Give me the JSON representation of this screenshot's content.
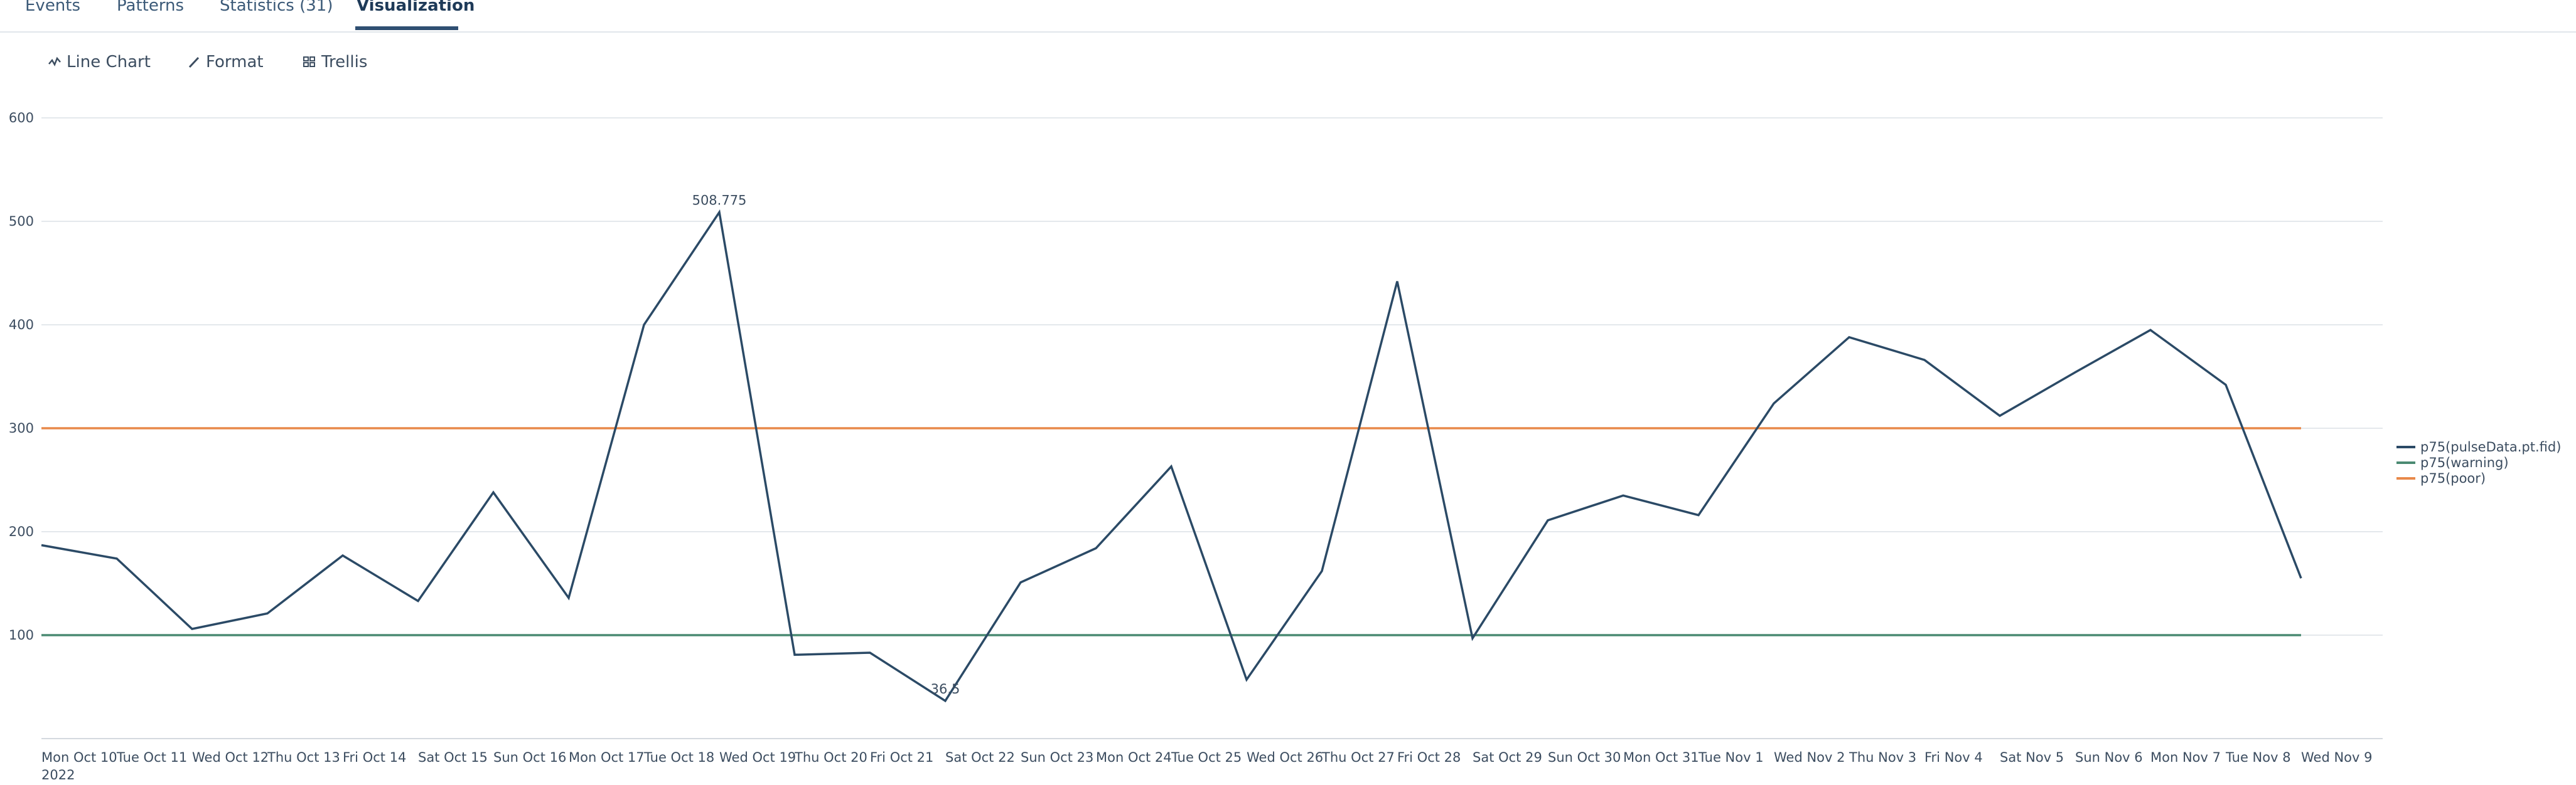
{
  "tabs": [
    {
      "label": "Events",
      "active": false
    },
    {
      "label": "Patterns",
      "active": false
    },
    {
      "label": "Statistics (31)",
      "active": false
    },
    {
      "label": "Visualization",
      "active": true
    }
  ],
  "toolbar": {
    "line_chart_label": "Line Chart",
    "format_label": "Format",
    "trellis_label": "Trellis"
  },
  "chart_data": {
    "type": "line",
    "x": [
      "Mon Oct 10",
      "Tue Oct 11",
      "Wed Oct 12",
      "Thu Oct 13",
      "Fri Oct 14",
      "Sat Oct 15",
      "Sun Oct 16",
      "Mon Oct 17",
      "Tue Oct 18",
      "Wed Oct 19",
      "Thu Oct 20",
      "Fri Oct 21",
      "Sat Oct 22",
      "Sun Oct 23",
      "Mon Oct 24",
      "Tue Oct 25",
      "Wed Oct 26",
      "Thu Oct 27",
      "Fri Oct 28",
      "Sat Oct 29",
      "Sun Oct 30",
      "Mon Oct 31",
      "Tue Nov 1",
      "Wed Nov 2",
      "Thu Nov 3",
      "Fri Nov 4",
      "Sat Nov 5",
      "Sun Nov 6",
      "Mon Nov 7",
      "Tue Nov 8",
      "Wed Nov 9"
    ],
    "x_year_label": "2022",
    "ylim": [
      0,
      600
    ],
    "yticks": [
      100,
      200,
      300,
      400,
      500,
      600
    ],
    "grid": true,
    "legend_position": "right",
    "series": [
      {
        "name": "p75(pulseData.pt.fid)",
        "color": "#2b4a66",
        "values": [
          187,
          174,
          106,
          121,
          177,
          133,
          238,
          136,
          400,
          508.775,
          81,
          83,
          36.5,
          151,
          184,
          263,
          57,
          162,
          442,
          97,
          211,
          235,
          216,
          324,
          388,
          366,
          312,
          354,
          395,
          342,
          155
        ]
      },
      {
        "name": "p75(warning)",
        "color": "#4a8a72",
        "values": [
          100,
          100,
          100,
          100,
          100,
          100,
          100,
          100,
          100,
          100,
          100,
          100,
          100,
          100,
          100,
          100,
          100,
          100,
          100,
          100,
          100,
          100,
          100,
          100,
          100,
          100,
          100,
          100,
          100,
          100,
          100
        ]
      },
      {
        "name": "p75(poor)",
        "color": "#e8894a",
        "values": [
          300,
          300,
          300,
          300,
          300,
          300,
          300,
          300,
          300,
          300,
          300,
          300,
          300,
          300,
          300,
          300,
          300,
          300,
          300,
          300,
          300,
          300,
          300,
          300,
          300,
          300,
          300,
          300,
          300,
          300,
          300
        ]
      }
    ],
    "data_labels": [
      {
        "series": "p75(pulseData.pt.fid)",
        "x": "Wed Oct 19",
        "text": "508.775"
      },
      {
        "series": "p75(pulseData.pt.fid)",
        "x": "Sat Oct 22",
        "text": "36.5"
      }
    ]
  }
}
